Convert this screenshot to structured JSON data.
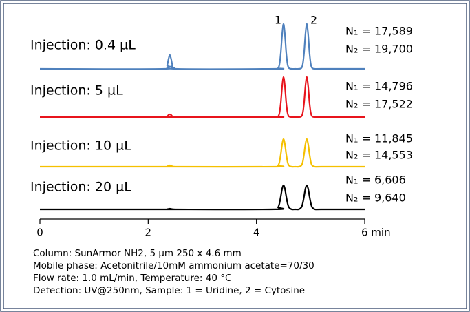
{
  "chart_data": {
    "type": "line",
    "x": [
      0,
      2.3,
      2.35,
      2.375,
      2.4,
      2.425,
      2.45,
      2.5,
      4.35,
      4.4,
      4.425,
      4.45,
      4.475,
      4.5,
      4.525,
      4.55,
      4.575,
      4.6,
      4.65,
      4.715,
      4.78,
      4.83,
      4.855,
      4.88,
      4.905,
      4.93,
      4.955,
      4.98,
      5.005,
      5.03,
      5.08,
      5.2,
      6
    ],
    "xlim": [
      0,
      6
    ],
    "xticks": [
      0,
      2,
      4,
      {
        "value": 6,
        "label": "6 min"
      }
    ],
    "peak_labels": [
      "1",
      "2"
    ],
    "series": [
      {
        "name": "Injection: 0.4 µL",
        "color": "#4f81bd",
        "plates": [
          "N₁ = 17,589",
          "N₂ = 19,700"
        ],
        "values": [
          0,
          0,
          5,
          14,
          20,
          14,
          5,
          0,
          0,
          1.1,
          6.5,
          23.4,
          50.4,
          65,
          50.4,
          23.4,
          6.5,
          1.1,
          0,
          0,
          0,
          1.1,
          6.5,
          23.4,
          50.4,
          65,
          50.4,
          23.4,
          6.5,
          1.1,
          0,
          0,
          0
        ]
      },
      {
        "name": "Injection: 5 µL",
        "color": "#e8141c",
        "plates": [
          "N₁ = 14,796",
          "N₂ = 17,522"
        ],
        "values": [
          0,
          0,
          1,
          3,
          4,
          3,
          1,
          0,
          0,
          1,
          5.8,
          20.9,
          45,
          58,
          45,
          20.9,
          5.8,
          1,
          0,
          0,
          0,
          1,
          5.8,
          20.9,
          45,
          58,
          45,
          20.9,
          5.8,
          1,
          0,
          0,
          0
        ]
      },
      {
        "name": "Injection: 10 µL",
        "color": "#f5c000",
        "plates": [
          "N₁ = 11,845",
          "N₂ = 14,553"
        ],
        "values": [
          0,
          0,
          0.5,
          1.4,
          2,
          1.4,
          0.5,
          0,
          0,
          1.8,
          6.8,
          18.4,
          32.8,
          40,
          32.8,
          18.4,
          6.8,
          1.8,
          0,
          0,
          0,
          1.8,
          6.8,
          18.4,
          32.8,
          40,
          32.8,
          18.4,
          6.8,
          1.8,
          0,
          0,
          0
        ]
      },
      {
        "name": "Injection: 20 µL",
        "color": "#000000",
        "plates": [
          "N₁ = 6,606",
          "N₂ = 9,640"
        ],
        "values": [
          0,
          0,
          0.3,
          0.7,
          1,
          0.7,
          0.3,
          0,
          0.1,
          3,
          8.8,
          18.9,
          30.1,
          35,
          30.1,
          18.9,
          8.8,
          3,
          0.1,
          0,
          0.1,
          3,
          8.8,
          18.9,
          30.1,
          35,
          30.1,
          18.9,
          8.8,
          3,
          0.1,
          0,
          0
        ]
      }
    ],
    "notes": [
      "Column: SunArmor NH2, 5 µm 250 x 4.6 mm",
      "Mobile phase: Acetonitrile/10mM ammonium acetate=70/30",
      "Flow rate: 1.0 mL/min, Temperature: 40 °C",
      "Detection: UV@250nm, Sample: 1 = Uridine, 2 = Cytosine"
    ]
  }
}
